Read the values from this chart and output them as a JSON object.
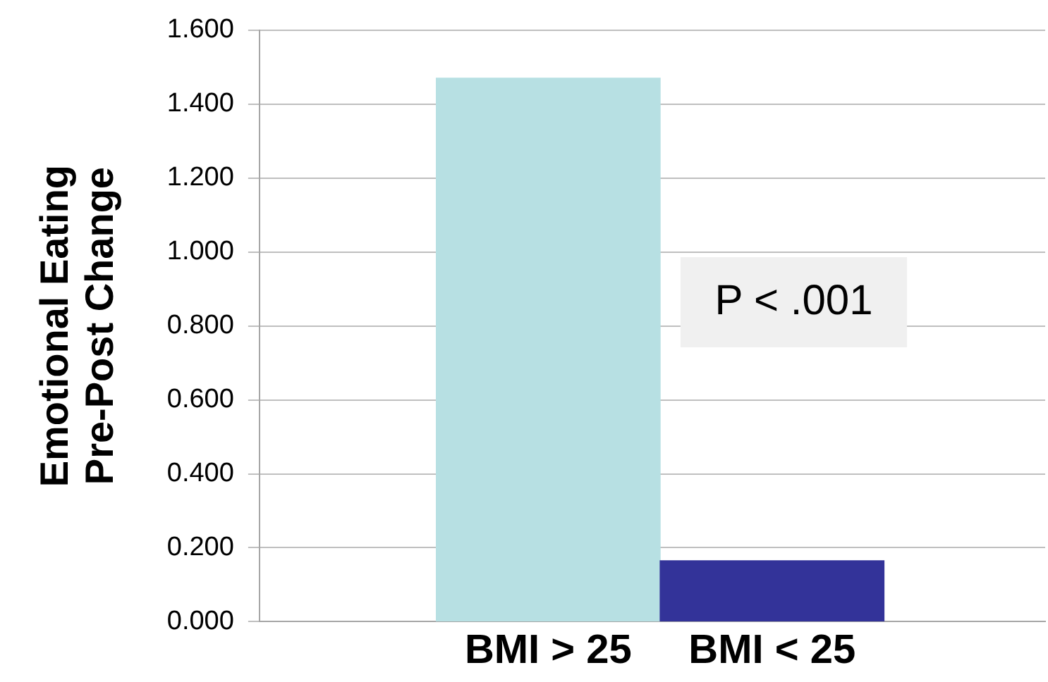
{
  "chart_data": {
    "type": "bar",
    "ylabel": "Emotional Eating\nPre-Post Change",
    "categories": [
      "BMI > 25",
      "BMI < 25"
    ],
    "values": [
      1.47,
      0.165
    ],
    "colors": [
      "#b7e0e3",
      "#333399"
    ],
    "ylim": [
      0,
      1.6
    ],
    "yticks": [
      {
        "value": 0,
        "label": "0.000"
      },
      {
        "value": 0.2,
        "label": "0.200"
      },
      {
        "value": 0.4,
        "label": "0.400"
      },
      {
        "value": 0.6,
        "label": "0.600"
      },
      {
        "value": 0.8,
        "label": "0.800"
      },
      {
        "value": 1,
        "label": "1.000"
      },
      {
        "value": 1.2,
        "label": "1.200"
      },
      {
        "value": 1.4,
        "label": "1.400"
      },
      {
        "value": 1.6,
        "label": "1.600"
      }
    ],
    "grid": "y",
    "annotations": [
      "P < .001"
    ]
  }
}
